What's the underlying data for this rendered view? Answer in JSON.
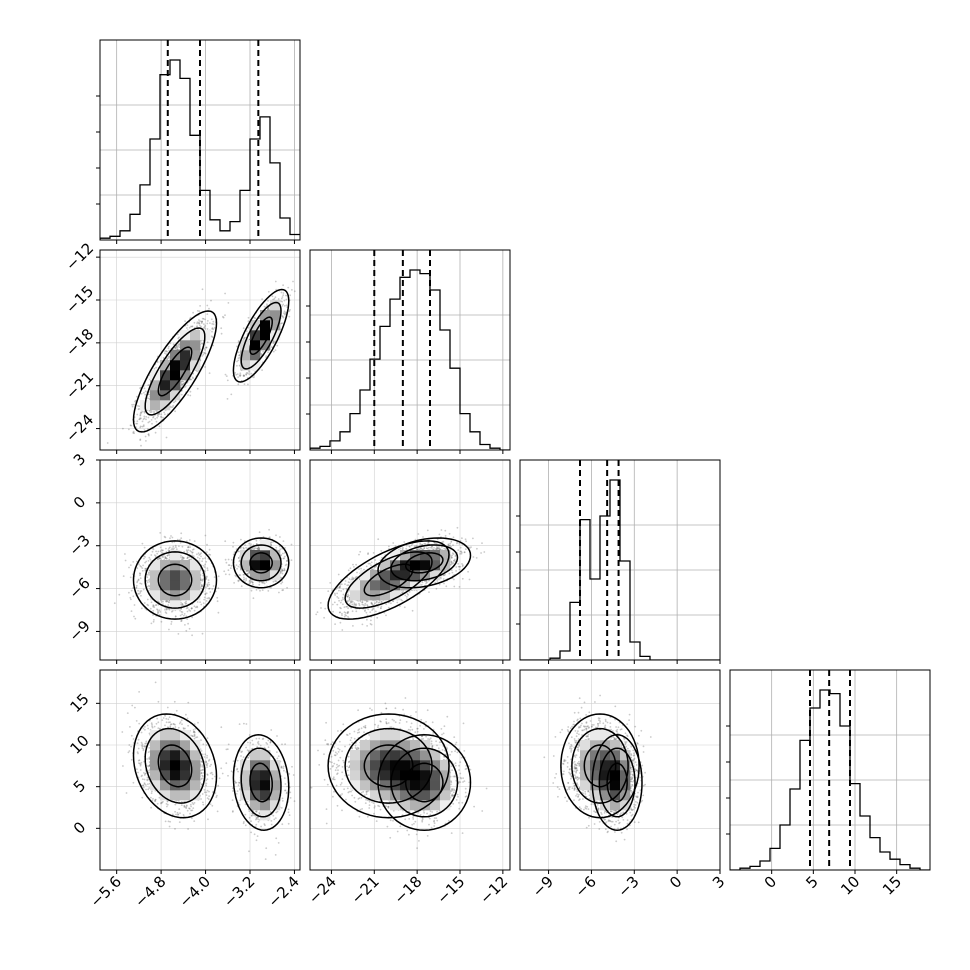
{
  "chart_data": {
    "type": "corner",
    "grid": true,
    "quantiles_marked": true,
    "params": [
      {
        "range": [
          -5.9,
          -2.3
        ],
        "ticks": [
          -5.6,
          -4.8,
          -4.0,
          -3.2,
          -2.4
        ],
        "tick_labels": [
          "−5.6",
          "−4.8",
          "−4.0",
          "−3.2",
          "−2.4"
        ],
        "quantiles": [
          -4.68,
          -4.1,
          -3.05
        ],
        "hist_bins": [
          -5.9,
          -5.72,
          -5.54,
          -5.36,
          -5.18,
          -5.0,
          -4.82,
          -4.64,
          -4.46,
          -4.28,
          -4.1,
          -3.92,
          -3.74,
          -3.56,
          -3.38,
          -3.2,
          -3.02,
          -2.84,
          -2.66,
          -2.48,
          -2.3
        ],
        "hist_counts": [
          0.01,
          0.02,
          0.05,
          0.14,
          0.3,
          0.55,
          0.9,
          0.98,
          0.88,
          0.57,
          0.27,
          0.11,
          0.05,
          0.1,
          0.27,
          0.55,
          0.67,
          0.42,
          0.12,
          0.03
        ]
      },
      {
        "range": [
          -25.5,
          -11.5
        ],
        "ticks": [
          -24,
          -21,
          -18,
          -15,
          -12
        ],
        "tick_labels": [
          "−24",
          "−21",
          "−18",
          "−15",
          "−12"
        ],
        "quantiles": [
          -21.0,
          -19.0,
          -17.1
        ],
        "hist_bins": [
          -25.5,
          -24.8,
          -24.1,
          -23.4,
          -22.7,
          -22.0,
          -21.3,
          -20.6,
          -19.9,
          -19.2,
          -18.5,
          -17.8,
          -17.1,
          -16.4,
          -15.7,
          -15.0,
          -14.3,
          -13.6,
          -12.9,
          -12.2,
          -11.5
        ],
        "hist_counts": [
          0.01,
          0.02,
          0.05,
          0.1,
          0.2,
          0.33,
          0.5,
          0.68,
          0.83,
          0.95,
          0.99,
          0.97,
          0.88,
          0.66,
          0.45,
          0.2,
          0.1,
          0.03,
          0.01,
          0.0
        ]
      },
      {
        "range": [
          -11,
          3
        ],
        "ticks": [
          -9,
          -6,
          -3,
          0,
          3
        ],
        "tick_labels": [
          "−9",
          "−6",
          "−3",
          "0",
          "3"
        ],
        "quantiles": [
          -6.8,
          -4.9,
          -4.1
        ],
        "hist_bins": [
          -11.0,
          -10.3,
          -9.6,
          -8.9,
          -8.2,
          -7.5,
          -6.8,
          -6.1,
          -5.4,
          -4.7,
          -4.0,
          -3.3,
          -2.6,
          -1.9,
          -1.2,
          -0.5,
          0.2,
          0.9,
          1.6,
          2.3,
          3.0
        ],
        "hist_counts": [
          0.0,
          0.0,
          0.0,
          0.01,
          0.05,
          0.32,
          0.78,
          0.45,
          0.8,
          1.0,
          0.55,
          0.1,
          0.02,
          0.0,
          0.0,
          0.0,
          0.0,
          0.0,
          0.0,
          0.0
        ]
      },
      {
        "range": [
          -5,
          19
        ],
        "ticks": [
          0,
          5,
          10,
          15
        ],
        "tick_labels": [
          "0",
          "5",
          "10",
          "15"
        ],
        "quantiles": [
          4.6,
          6.9,
          9.4
        ],
        "hist_bins": [
          -5.0,
          -3.8,
          -2.6,
          -1.4,
          -0.2,
          1.0,
          2.2,
          3.4,
          4.6,
          5.8,
          7.0,
          8.2,
          9.4,
          10.6,
          11.8,
          13.0,
          14.2,
          15.4,
          16.6,
          17.8,
          19.0
        ],
        "hist_counts": [
          0.0,
          0.01,
          0.02,
          0.05,
          0.12,
          0.25,
          0.45,
          0.72,
          0.9,
          1.0,
          0.98,
          0.8,
          0.48,
          0.3,
          0.18,
          0.1,
          0.06,
          0.03,
          0.01,
          0.0
        ]
      }
    ],
    "clusters": [
      {
        "weight": 0.62,
        "mean": [
          -4.55,
          -20.0,
          -5.4,
          7.5
        ],
        "sd": [
          0.3,
          1.7,
          1.1,
          2.5
        ],
        "corr01": 0.8,
        "corr03": -0.2,
        "corr12": 0.65
      },
      {
        "weight": 0.38,
        "mean": [
          -3.0,
          -17.5,
          -4.2,
          5.5
        ],
        "sd": [
          0.2,
          1.3,
          0.7,
          2.3
        ],
        "corr01": 0.75,
        "corr03": -0.1,
        "corr12": 0.3
      }
    ]
  }
}
